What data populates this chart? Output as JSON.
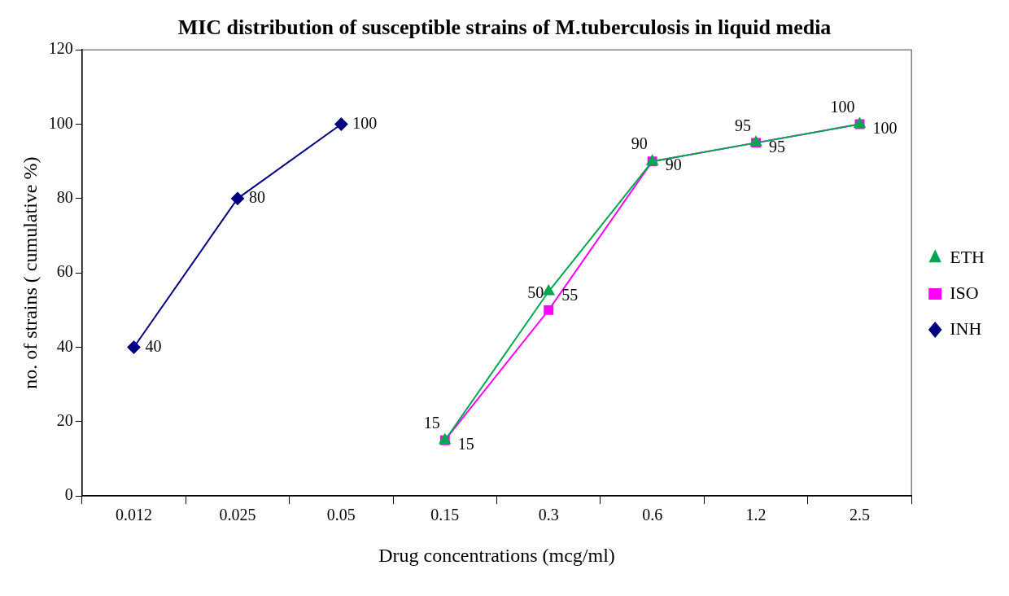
{
  "chart_data": {
    "type": "line",
    "title": "MIC distribution of susceptible strains of M.tuberculosis in liquid media",
    "xlabel": "Drug concentrations (mcg/ml)",
    "ylabel": "no. of strains ( cumulative %)",
    "categories": [
      "0.012",
      "0.025",
      "0.05",
      "0.15",
      "0.3",
      "0.6",
      "1.2",
      "2.5"
    ],
    "series": [
      {
        "name": "INH",
        "color": "#000080",
        "marker": "diamond",
        "values": [
          40,
          80,
          100,
          null,
          null,
          null,
          null,
          null
        ]
      },
      {
        "name": "ISO",
        "color": "#ff00ff",
        "marker": "square",
        "values": [
          null,
          null,
          null,
          15,
          50,
          90,
          95,
          100
        ]
      },
      {
        "name": "ETH",
        "color": "#00a651",
        "marker": "triangle",
        "values": [
          null,
          null,
          null,
          15,
          55,
          90,
          95,
          100
        ]
      }
    ],
    "ylim": [
      0,
      120
    ],
    "yticks": [
      0,
      20,
      40,
      60,
      80,
      100,
      120
    ],
    "grid": false,
    "legend": "right",
    "data_labels": true
  }
}
